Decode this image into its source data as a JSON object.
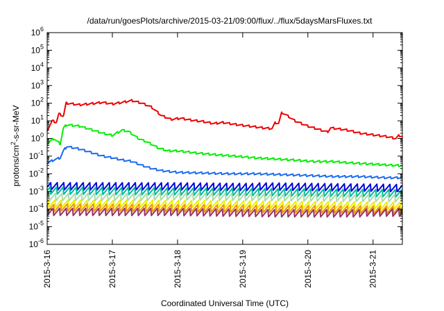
{
  "chart_data": {
    "type": "line",
    "title": "/data/run/goesPlots/archive/2015-03-21/09:00/flux/../flux/5daysMarsFluxes.txt",
    "xlabel": "Coordinated Universal Time (UTC)",
    "ylabel_prefix": "protons/cm",
    "ylabel_sup": "2",
    "ylabel_suffix": "-s-sr-MeV",
    "y_scale": "log",
    "ylim": [
      1e-06,
      1000000.0
    ],
    "xlim": [
      0,
      5.45
    ],
    "x_origin": "2015-3-16",
    "x_ticks": [
      {
        "x": 0,
        "label": "2015-3-16"
      },
      {
        "x": 1,
        "label": "2015-3-17"
      },
      {
        "x": 2,
        "label": "2015-3-18"
      },
      {
        "x": 3,
        "label": "2015-3-19"
      },
      {
        "x": 4,
        "label": "2015-3-20"
      },
      {
        "x": 5,
        "label": "2015-3-21"
      }
    ],
    "y_ticks": [
      {
        "exp": -6,
        "base": "10",
        "sup": "-6"
      },
      {
        "exp": -5,
        "base": "10",
        "sup": "-5"
      },
      {
        "exp": -4,
        "base": "10",
        "sup": "-4"
      },
      {
        "exp": -3,
        "base": "10",
        "sup": "-3"
      },
      {
        "exp": -2,
        "base": "10",
        "sup": "-2"
      },
      {
        "exp": -1,
        "base": "10",
        "sup": "-1"
      },
      {
        "exp": 0,
        "base": "10",
        "sup": "0"
      },
      {
        "exp": 1,
        "base": "10",
        "sup": "1"
      },
      {
        "exp": 2,
        "base": "10",
        "sup": "2"
      },
      {
        "exp": 3,
        "base": "10",
        "sup": "3"
      },
      {
        "exp": 4,
        "base": "10",
        "sup": "4"
      },
      {
        "exp": 5,
        "base": "10",
        "sup": "5"
      },
      {
        "exp": 6,
        "base": "10",
        "sup": "6"
      }
    ],
    "grid": false,
    "series": [
      {
        "color": "#ee0000",
        "points": [
          [
            0,
            3
          ],
          [
            0.08,
            10
          ],
          [
            0.14,
            8
          ],
          [
            0.18,
            25
          ],
          [
            0.25,
            18
          ],
          [
            0.29,
            100
          ],
          [
            0.5,
            80
          ],
          [
            0.7,
            95
          ],
          [
            0.85,
            110
          ],
          [
            1.0,
            90
          ],
          [
            1.15,
            110
          ],
          [
            1.3,
            140
          ],
          [
            1.45,
            100
          ],
          [
            1.6,
            60
          ],
          [
            1.75,
            20
          ],
          [
            1.9,
            12
          ],
          [
            2.05,
            14
          ],
          [
            2.2,
            11
          ],
          [
            2.4,
            9
          ],
          [
            2.55,
            7
          ],
          [
            2.7,
            8
          ],
          [
            2.85,
            6.5
          ],
          [
            3.0,
            5.5
          ],
          [
            3.1,
            5
          ],
          [
            3.2,
            4.5
          ],
          [
            3.3,
            4
          ],
          [
            3.45,
            3.6
          ],
          [
            3.5,
            8
          ],
          [
            3.55,
            7
          ],
          [
            3.6,
            30
          ],
          [
            3.7,
            18
          ],
          [
            3.8,
            10
          ],
          [
            4.0,
            5
          ],
          [
            4.2,
            3
          ],
          [
            4.3,
            2.3
          ],
          [
            4.35,
            4
          ],
          [
            4.6,
            3
          ],
          [
            4.8,
            2
          ],
          [
            5.0,
            1.6
          ],
          [
            5.2,
            1.3
          ],
          [
            5.35,
            1
          ],
          [
            5.4,
            1.5
          ],
          [
            5.45,
            1.3
          ]
        ]
      },
      {
        "color": "#00ee00",
        "points": [
          [
            0,
            0.5
          ],
          [
            0.1,
            1
          ],
          [
            0.2,
            0.5
          ],
          [
            0.25,
            4
          ],
          [
            0.3,
            6
          ],
          [
            0.5,
            5
          ],
          [
            0.7,
            3
          ],
          [
            0.85,
            2
          ],
          [
            1.0,
            1.5
          ],
          [
            1.15,
            3
          ],
          [
            1.25,
            2.5
          ],
          [
            1.4,
            1
          ],
          [
            1.55,
            0.6
          ],
          [
            1.7,
            0.3
          ],
          [
            1.85,
            0.2
          ],
          [
            2.0,
            0.2
          ],
          [
            2.3,
            0.15
          ],
          [
            2.6,
            0.12
          ],
          [
            2.9,
            0.1
          ],
          [
            3.2,
            0.08
          ],
          [
            3.5,
            0.07
          ],
          [
            3.8,
            0.06
          ],
          [
            4.1,
            0.05
          ],
          [
            4.4,
            0.05
          ],
          [
            4.7,
            0.04
          ],
          [
            5.0,
            0.035
          ],
          [
            5.3,
            0.03
          ],
          [
            5.45,
            0.028
          ]
        ]
      },
      {
        "color": "#1a6aee",
        "points": [
          [
            0,
            0.04
          ],
          [
            0.1,
            0.06
          ],
          [
            0.2,
            0.08
          ],
          [
            0.25,
            0.2
          ],
          [
            0.3,
            0.35
          ],
          [
            0.5,
            0.25
          ],
          [
            0.7,
            0.15
          ],
          [
            0.85,
            0.1
          ],
          [
            1.0,
            0.08
          ],
          [
            1.15,
            0.06
          ],
          [
            1.3,
            0.05
          ],
          [
            1.45,
            0.03
          ],
          [
            1.6,
            0.02
          ],
          [
            1.75,
            0.015
          ],
          [
            2.0,
            0.012
          ],
          [
            2.4,
            0.011
          ],
          [
            2.8,
            0.01
          ],
          [
            3.2,
            0.01
          ],
          [
            3.6,
            0.009
          ],
          [
            4.0,
            0.008
          ],
          [
            4.4,
            0.007
          ],
          [
            4.8,
            0.007
          ],
          [
            5.2,
            0.006
          ],
          [
            5.45,
            0.006
          ]
        ]
      },
      {
        "color": "#0000dd",
        "points": [
          [
            0,
            0.002
          ],
          [
            2,
            0.002
          ],
          [
            3.5,
            0.0018
          ],
          [
            5.45,
            0.0015
          ]
        ]
      },
      {
        "color": "#00bb99",
        "points": [
          [
            0,
            0.0011
          ],
          [
            2,
            0.001
          ],
          [
            3.5,
            0.0009
          ],
          [
            5.45,
            0.0008
          ]
        ]
      },
      {
        "color": "#aaddaa",
        "points": [
          [
            0,
            0.0005
          ],
          [
            2,
            0.0005
          ],
          [
            3.5,
            0.00045
          ],
          [
            5.45,
            0.0004
          ]
        ]
      },
      {
        "color": "#eeee00",
        "points": [
          [
            0,
            0.0002
          ],
          [
            2,
            0.0002
          ],
          [
            3.5,
            0.00018
          ],
          [
            5.45,
            0.00016
          ]
        ]
      },
      {
        "color": "#ee9900",
        "points": [
          [
            0,
            0.00012
          ],
          [
            2,
            0.00011
          ],
          [
            3.5,
            0.0001
          ],
          [
            5.45,
            9e-05
          ]
        ]
      },
      {
        "color": "#993366",
        "points": [
          [
            0,
            7e-05
          ],
          [
            2,
            7e-05
          ],
          [
            3.5,
            6e-05
          ],
          [
            5.45,
            6e-05
          ]
        ]
      }
    ]
  }
}
